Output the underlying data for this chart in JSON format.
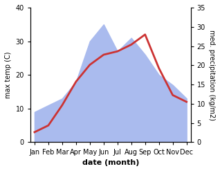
{
  "months": [
    "Jan",
    "Feb",
    "Mar",
    "Apr",
    "May",
    "Jun",
    "Jul",
    "Aug",
    "Sep",
    "Oct",
    "Nov",
    "Dec"
  ],
  "temperature": [
    3,
    5,
    11,
    18,
    23,
    26,
    27,
    29,
    32,
    22,
    14,
    12
  ],
  "precipitation_left_scale": [
    9,
    11,
    13,
    18,
    30,
    35,
    27,
    31,
    26,
    20,
    17,
    13
  ],
  "temp_color": "#cc3333",
  "precip_color": "#aabbee",
  "temp_ylim": [
    0,
    40
  ],
  "precip_ylim": [
    0,
    35
  ],
  "temp_yticks": [
    0,
    10,
    20,
    30,
    40
  ],
  "precip_yticks": [
    0,
    5,
    10,
    15,
    20,
    25,
    30,
    35
  ],
  "xlabel": "date (month)",
  "ylabel_left": "max temp (C)",
  "ylabel_right": "med. precipitation (kg/m2)",
  "bg_color": "#ffffff",
  "temp_linewidth": 2.0
}
